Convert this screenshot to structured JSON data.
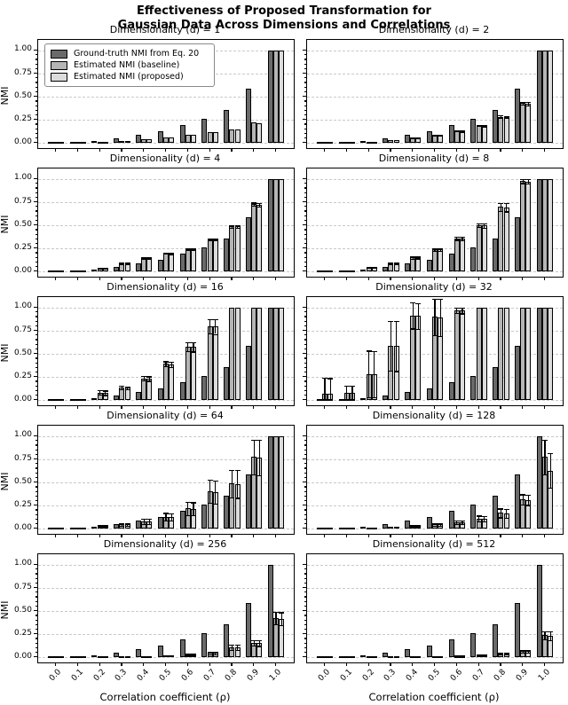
{
  "suptitle": {
    "line1": "Effectiveness of Proposed Transformation for",
    "line2": "Gaussian Data Across Dimensions and Correlations"
  },
  "axes": {
    "xlabel": "Correlation coefficient (ρ)",
    "ylabel": "NMI",
    "xticks": [
      "0.0",
      "0.1",
      "0.2",
      "0.3",
      "0.4",
      "0.5",
      "0.6",
      "0.7",
      "0.8",
      "0.9",
      "1.0"
    ],
    "yticks": [
      "0.00",
      "0.25",
      "0.50",
      "0.75",
      "1.00"
    ]
  },
  "legend": {
    "items": [
      {
        "label": "Ground-truth NMI from Eq. 20",
        "color": "#6a6a6a"
      },
      {
        "label": "Estimated NMI (baseline)",
        "color": "#b5b5b5"
      },
      {
        "label": "Estimated NMI (proposed)",
        "color": "#dcdcdc"
      }
    ]
  },
  "chart_data": {
    "type": "bar",
    "title": "Effectiveness of Proposed Transformation for Gaussian Data Across Dimensions and Correlations",
    "xlabel": "Correlation coefficient (ρ)",
    "ylabel": "NMI",
    "categories": [
      0.0,
      0.1,
      0.2,
      0.3,
      0.4,
      0.5,
      0.6,
      0.7,
      0.8,
      0.9,
      1.0
    ],
    "ylim": [
      -0.055,
      1.115
    ],
    "gridlines": [
      0,
      0.25,
      0.5,
      0.75,
      1.0
    ],
    "grid": "horizontal-dashed",
    "legend_position": "upper-left-first-subplot",
    "series_names": [
      "Ground-truth NMI from Eq. 20",
      "Estimated NMI (baseline)",
      "Estimated NMI (proposed)"
    ],
    "colors": {
      "ground_truth": "#6a6a6a",
      "baseline": "#b5b5b5",
      "proposed": "#dcdcdc",
      "edge": "#000000"
    },
    "subplots": [
      {
        "d": 1,
        "title": "Dimensionality (d) = 1",
        "ground_truth": [
          0.002,
          0.005,
          0.02,
          0.047,
          0.085,
          0.13,
          0.196,
          0.264,
          0.36,
          0.583,
          1.0
        ],
        "baseline": [
          0.001,
          0.004,
          0.01,
          0.024,
          0.042,
          0.06,
          0.09,
          0.12,
          0.145,
          0.22,
          1.0
        ],
        "proposed": [
          0.001,
          0.004,
          0.01,
          0.023,
          0.041,
          0.059,
          0.088,
          0.118,
          0.143,
          0.218,
          1.0
        ],
        "err": [
          0,
          0,
          0,
          0,
          0,
          0,
          0,
          0,
          0,
          0,
          0
        ]
      },
      {
        "d": 2,
        "title": "Dimensionality (d) = 2",
        "ground_truth": [
          0.002,
          0.005,
          0.02,
          0.047,
          0.085,
          0.13,
          0.196,
          0.264,
          0.36,
          0.583,
          1.0
        ],
        "baseline": [
          0.002,
          0.005,
          0.015,
          0.031,
          0.06,
          0.088,
          0.132,
          0.19,
          0.285,
          0.43,
          1.0
        ],
        "proposed": [
          0.002,
          0.005,
          0.014,
          0.03,
          0.058,
          0.086,
          0.13,
          0.188,
          0.282,
          0.428,
          1.0
        ],
        "err": [
          0,
          0,
          0,
          0.003,
          0.004,
          0.005,
          0.006,
          0.008,
          0.012,
          0.018,
          0
        ]
      },
      {
        "d": 4,
        "title": "Dimensionality (d) = 4",
        "ground_truth": [
          0.002,
          0.005,
          0.02,
          0.047,
          0.085,
          0.13,
          0.196,
          0.264,
          0.36,
          0.583,
          1.0
        ],
        "baseline": [
          0.002,
          0.006,
          0.04,
          0.09,
          0.148,
          0.2,
          0.246,
          0.35,
          0.49,
          0.728,
          1.0
        ],
        "proposed": [
          0.002,
          0.006,
          0.039,
          0.088,
          0.146,
          0.198,
          0.243,
          0.347,
          0.487,
          0.724,
          1.0
        ],
        "err": [
          0,
          0,
          0.004,
          0.006,
          0.008,
          0.008,
          0.01,
          0.01,
          0.014,
          0.018,
          0
        ]
      },
      {
        "d": 8,
        "title": "Dimensionality (d) = 8",
        "ground_truth": [
          0.002,
          0.005,
          0.02,
          0.047,
          0.085,
          0.13,
          0.196,
          0.264,
          0.36,
          0.583,
          1.0
        ],
        "baseline": [
          0.003,
          0.008,
          0.046,
          0.092,
          0.152,
          0.24,
          0.362,
          0.502,
          0.7,
          0.98,
          1.0
        ],
        "proposed": [
          0.003,
          0.008,
          0.045,
          0.09,
          0.15,
          0.238,
          0.358,
          0.498,
          0.695,
          0.975,
          1.0
        ],
        "err": [
          0,
          0,
          0.005,
          0.008,
          0.012,
          0.015,
          0.018,
          0.022,
          0.045,
          0.022,
          0
        ]
      },
      {
        "d": 16,
        "title": "Dimensionality (d) = 16",
        "ground_truth": [
          0.002,
          0.005,
          0.02,
          0.047,
          0.085,
          0.13,
          0.196,
          0.264,
          0.36,
          0.583,
          1.0
        ],
        "baseline": [
          0.004,
          0.01,
          0.082,
          0.135,
          0.236,
          0.392,
          0.58,
          0.8,
          1.0,
          1.0,
          1.0
        ],
        "proposed": [
          0.004,
          0.01,
          0.08,
          0.133,
          0.233,
          0.388,
          0.575,
          0.795,
          1.0,
          1.0,
          1.0
        ],
        "err": [
          0,
          0.004,
          0.024,
          0.018,
          0.024,
          0.028,
          0.048,
          0.078,
          0,
          0,
          0
        ]
      },
      {
        "d": 32,
        "title": "Dimensionality (d) = 32",
        "ground_truth": [
          0.002,
          0.005,
          0.02,
          0.047,
          0.085,
          0.13,
          0.196,
          0.264,
          0.36,
          0.583,
          1.0
        ],
        "baseline": [
          0.07,
          0.08,
          0.285,
          0.59,
          0.915,
          0.9,
          0.97,
          1.0,
          1.0,
          1.0,
          1.0
        ],
        "proposed": [
          0.068,
          0.078,
          0.28,
          0.585,
          0.91,
          0.895,
          0.968,
          1.0,
          1.0,
          1.0,
          1.0
        ],
        "err": [
          0.17,
          0.08,
          0.25,
          0.27,
          0.14,
          0.2,
          0.03,
          0,
          0,
          0,
          0
        ]
      },
      {
        "d": 64,
        "title": "Dimensionality (d) = 64",
        "ground_truth": [
          0.002,
          0.005,
          0.02,
          0.047,
          0.085,
          0.13,
          0.196,
          0.264,
          0.36,
          0.583,
          1.0
        ],
        "baseline": [
          0.004,
          0.006,
          0.028,
          0.048,
          0.08,
          0.132,
          0.22,
          0.405,
          0.49,
          0.775,
          1.0
        ],
        "proposed": [
          0.004,
          0.006,
          0.027,
          0.047,
          0.078,
          0.13,
          0.216,
          0.4,
          0.485,
          0.77,
          1.0
        ],
        "err": [
          0,
          0,
          0.01,
          0.016,
          0.028,
          0.04,
          0.07,
          0.125,
          0.15,
          0.19,
          0
        ]
      },
      {
        "d": 128,
        "title": "Dimensionality (d) = 128",
        "ground_truth": [
          0.002,
          0.005,
          0.02,
          0.047,
          0.085,
          0.13,
          0.196,
          0.264,
          0.36,
          0.583,
          1.0
        ],
        "baseline": [
          0.003,
          0.004,
          0.008,
          0.02,
          0.032,
          0.05,
          0.072,
          0.112,
          0.172,
          0.318,
          0.775
        ],
        "proposed": [
          0.003,
          0.004,
          0.008,
          0.019,
          0.031,
          0.048,
          0.07,
          0.11,
          0.168,
          0.312,
          0.63
        ],
        "err": [
          0,
          0,
          0,
          0.005,
          0.008,
          0.014,
          0.02,
          0.03,
          0.048,
          0.055,
          0.185
        ]
      },
      {
        "d": 256,
        "title": "Dimensionality (d) = 256",
        "ground_truth": [
          0.002,
          0.005,
          0.02,
          0.047,
          0.085,
          0.13,
          0.196,
          0.264,
          0.36,
          0.583,
          1.0
        ],
        "baseline": [
          0.003,
          0.004,
          0.006,
          0.009,
          0.012,
          0.02,
          0.035,
          0.05,
          0.11,
          0.158,
          0.425
        ],
        "proposed": [
          0.003,
          0.004,
          0.006,
          0.009,
          0.012,
          0.019,
          0.034,
          0.048,
          0.107,
          0.154,
          0.418
        ],
        "err": [
          0,
          0,
          0,
          0,
          0,
          0.005,
          0.01,
          0.014,
          0.03,
          0.03,
          0.07
        ]
      },
      {
        "d": 512,
        "title": "Dimensionality (d) = 512",
        "ground_truth": [
          0.002,
          0.005,
          0.02,
          0.047,
          0.085,
          0.13,
          0.196,
          0.264,
          0.36,
          0.583,
          1.0
        ],
        "baseline": [
          0.002,
          0.003,
          0.004,
          0.006,
          0.008,
          0.01,
          0.015,
          0.025,
          0.042,
          0.068,
          0.238
        ],
        "proposed": [
          0.002,
          0.003,
          0.004,
          0.006,
          0.008,
          0.01,
          0.014,
          0.024,
          0.04,
          0.066,
          0.234
        ],
        "err": [
          0,
          0,
          0,
          0,
          0,
          0,
          0.004,
          0.007,
          0.01,
          0.015,
          0.045
        ]
      }
    ]
  }
}
